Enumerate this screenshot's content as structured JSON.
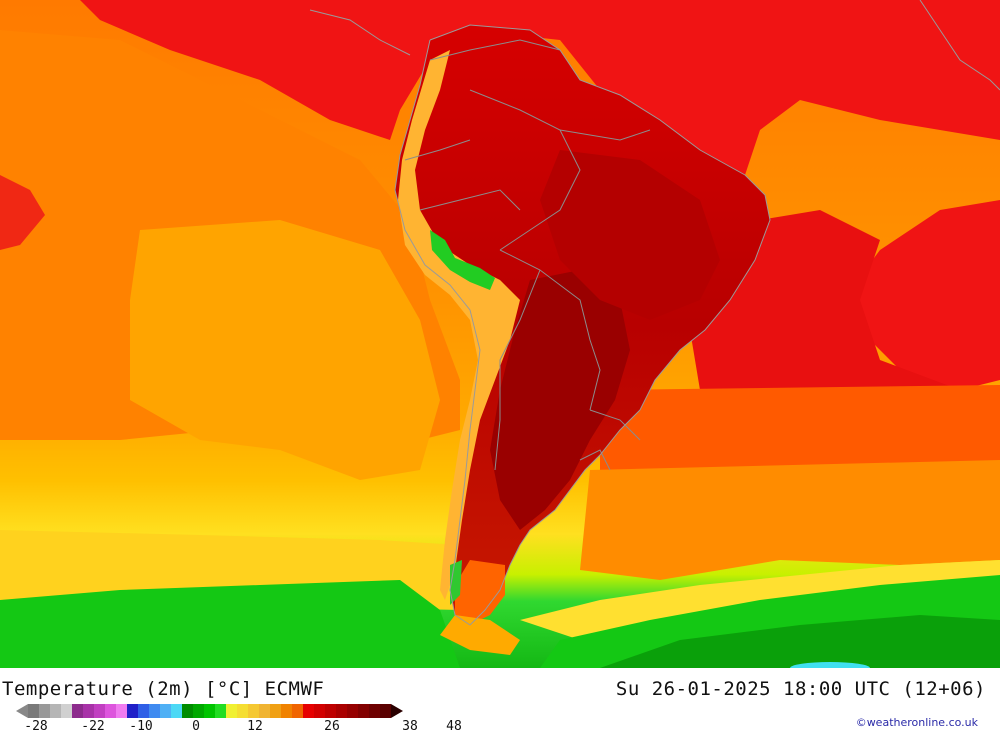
{
  "title": {
    "left": "Temperature (2m) [°C] ECMWF",
    "right": "Su 26-01-2025 18:00 UTC (12+06)"
  },
  "credit": "©weatheronline.co.uk",
  "legend": {
    "colors": [
      "#7a7a7a",
      "#999999",
      "#b5b5b5",
      "#d0d0d0",
      "#8c2b8c",
      "#a832a8",
      "#c13fc1",
      "#dd55dd",
      "#f07cf0",
      "#2020c8",
      "#2f5fe6",
      "#3f8af0",
      "#4fb0f5",
      "#4cd8f5",
      "#008c00",
      "#00a800",
      "#00c400",
      "#22dd22",
      "#f0f032",
      "#f5de32",
      "#f5c832",
      "#f0b432",
      "#f0a014",
      "#f08200",
      "#f06400",
      "#e60000",
      "#d20000",
      "#be0000",
      "#aa0000",
      "#960000",
      "#820000",
      "#6e0000",
      "#5a0000"
    ],
    "ticks": [
      "-28",
      "-22",
      "-10",
      "0",
      "12",
      "26",
      "38",
      "48"
    ]
  },
  "map": {
    "region": "South America",
    "colors": {
      "ocean_warm": "#ff8c00",
      "ocean_hot": "#f01414",
      "ocean_mild": "#ffaa00",
      "cool_south": "#ffd21e",
      "cold_band": "#20d020",
      "land_hot": "#cc0000",
      "land_very_hot": "#9a0000",
      "andes": "#ffb432",
      "borders": "#8c8c8c"
    }
  }
}
